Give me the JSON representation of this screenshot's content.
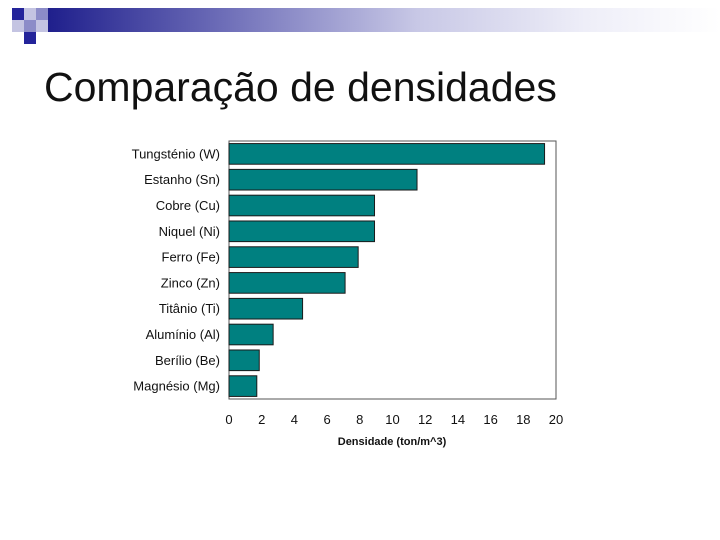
{
  "slide": {
    "title": "Comparação de densidades"
  },
  "colors": {
    "bar_fill": "#008080",
    "bar_stroke": "#1a1a1a",
    "header_dark": "#24249a",
    "header_light": "#c4c4e2"
  },
  "chart_data": {
    "type": "bar",
    "orientation": "horizontal",
    "categories": [
      "Tungsténio (W)",
      "Estanho (Sn)",
      "Cobre (Cu)",
      "Niquel (Ni)",
      "Ferro (Fe)",
      "Zinco (Zn)",
      "Titânio (Ti)",
      "Alumínio (Al)",
      "Berílio (Be)",
      "Magnésio (Mg)"
    ],
    "values": [
      19.3,
      11.5,
      8.9,
      8.9,
      7.9,
      7.1,
      4.5,
      2.7,
      1.85,
      1.7
    ],
    "xlabel": "Densidade (ton/m^3)",
    "ylabel": "",
    "xlim": [
      0,
      20
    ],
    "xticks": [
      0,
      2,
      4,
      6,
      8,
      10,
      12,
      14,
      16,
      18,
      20
    ],
    "grid": false,
    "legend": "none"
  }
}
